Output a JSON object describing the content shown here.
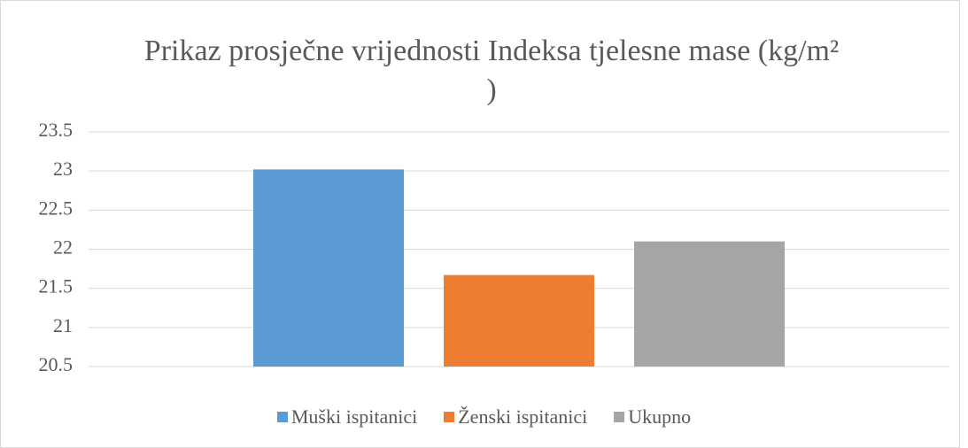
{
  "chart_data": {
    "type": "bar",
    "title": "Prikaz prosječne vrijednosti Indeksa tjelesne mase (kg/m² )",
    "categories": [
      null
    ],
    "series": [
      {
        "name": "Muški ispitanici",
        "color": "#5b9bd5",
        "values": [
          23.02
        ]
      },
      {
        "name": "Ženski ispitanici",
        "color": "#ed7d31",
        "values": [
          21.67
        ]
      },
      {
        "name": "Ukupno",
        "color": "#a5a5a5",
        "values": [
          22.1
        ]
      }
    ],
    "ylim": [
      20.5,
      23.5
    ],
    "yticks": [
      20.5,
      21,
      21.5,
      22,
      22.5,
      23,
      23.5
    ],
    "grid": true,
    "legend": "bottom"
  }
}
